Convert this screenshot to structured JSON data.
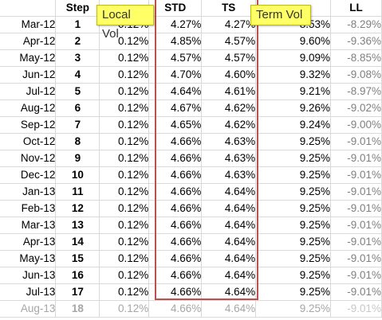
{
  "headers": {
    "col_a": "",
    "step": "Step",
    "local_vol": "",
    "std": "STD",
    "ts": "TS",
    "term_vol": "",
    "ll": "LL"
  },
  "callouts": {
    "local_vol": "Local Vol",
    "term_vol": "Term Vol"
  },
  "rows": [
    {
      "month": "Mar-12",
      "step": "1",
      "local": "0.12%",
      "std": "4.27%",
      "ts": "4.27%",
      "term": "8.53%",
      "ll": "-8.29%"
    },
    {
      "month": "Apr-12",
      "step": "2",
      "local": "0.12%",
      "std": "4.85%",
      "ts": "4.57%",
      "term": "9.60%",
      "ll": "-9.36%"
    },
    {
      "month": "May-12",
      "step": "3",
      "local": "0.12%",
      "std": "4.57%",
      "ts": "4.57%",
      "term": "9.09%",
      "ll": "-8.85%"
    },
    {
      "month": "Jun-12",
      "step": "4",
      "local": "0.12%",
      "std": "4.70%",
      "ts": "4.60%",
      "term": "9.32%",
      "ll": "-9.08%"
    },
    {
      "month": "Jul-12",
      "step": "5",
      "local": "0.12%",
      "std": "4.64%",
      "ts": "4.61%",
      "term": "9.21%",
      "ll": "-8.97%"
    },
    {
      "month": "Aug-12",
      "step": "6",
      "local": "0.12%",
      "std": "4.67%",
      "ts": "4.62%",
      "term": "9.26%",
      "ll": "-9.02%"
    },
    {
      "month": "Sep-12",
      "step": "7",
      "local": "0.12%",
      "std": "4.65%",
      "ts": "4.62%",
      "term": "9.24%",
      "ll": "-9.00%"
    },
    {
      "month": "Oct-12",
      "step": "8",
      "local": "0.12%",
      "std": "4.66%",
      "ts": "4.63%",
      "term": "9.25%",
      "ll": "-9.01%"
    },
    {
      "month": "Nov-12",
      "step": "9",
      "local": "0.12%",
      "std": "4.66%",
      "ts": "4.63%",
      "term": "9.25%",
      "ll": "-9.01%"
    },
    {
      "month": "Dec-12",
      "step": "10",
      "local": "0.12%",
      "std": "4.66%",
      "ts": "4.63%",
      "term": "9.25%",
      "ll": "-9.01%"
    },
    {
      "month": "Jan-13",
      "step": "11",
      "local": "0.12%",
      "std": "4.66%",
      "ts": "4.64%",
      "term": "9.25%",
      "ll": "-9.01%"
    },
    {
      "month": "Feb-13",
      "step": "12",
      "local": "0.12%",
      "std": "4.66%",
      "ts": "4.64%",
      "term": "9.25%",
      "ll": "-9.01%"
    },
    {
      "month": "Mar-13",
      "step": "13",
      "local": "0.12%",
      "std": "4.66%",
      "ts": "4.64%",
      "term": "9.25%",
      "ll": "-9.01%"
    },
    {
      "month": "Apr-13",
      "step": "14",
      "local": "0.12%",
      "std": "4.66%",
      "ts": "4.64%",
      "term": "9.25%",
      "ll": "-9.01%"
    },
    {
      "month": "May-13",
      "step": "15",
      "local": "0.12%",
      "std": "4.66%",
      "ts": "4.64%",
      "term": "9.25%",
      "ll": "-9.01%"
    },
    {
      "month": "Jun-13",
      "step": "16",
      "local": "0.12%",
      "std": "4.66%",
      "ts": "4.64%",
      "term": "9.25%",
      "ll": "-9.01%"
    },
    {
      "month": "Jul-13",
      "step": "17",
      "local": "0.12%",
      "std": "4.66%",
      "ts": "4.64%",
      "term": "9.25%",
      "ll": "-9.01%"
    },
    {
      "month": "Aug-13",
      "step": "18",
      "local": "0.12%",
      "std": "4.66%",
      "ts": "4.64%",
      "term": "9.25%",
      "ll": "-9.01%"
    }
  ],
  "colors": {
    "highlight_frame": "#c0504d",
    "callout_fill": "#ffff66",
    "gridline": "#d9d9d9",
    "ll_text": "#808080"
  }
}
